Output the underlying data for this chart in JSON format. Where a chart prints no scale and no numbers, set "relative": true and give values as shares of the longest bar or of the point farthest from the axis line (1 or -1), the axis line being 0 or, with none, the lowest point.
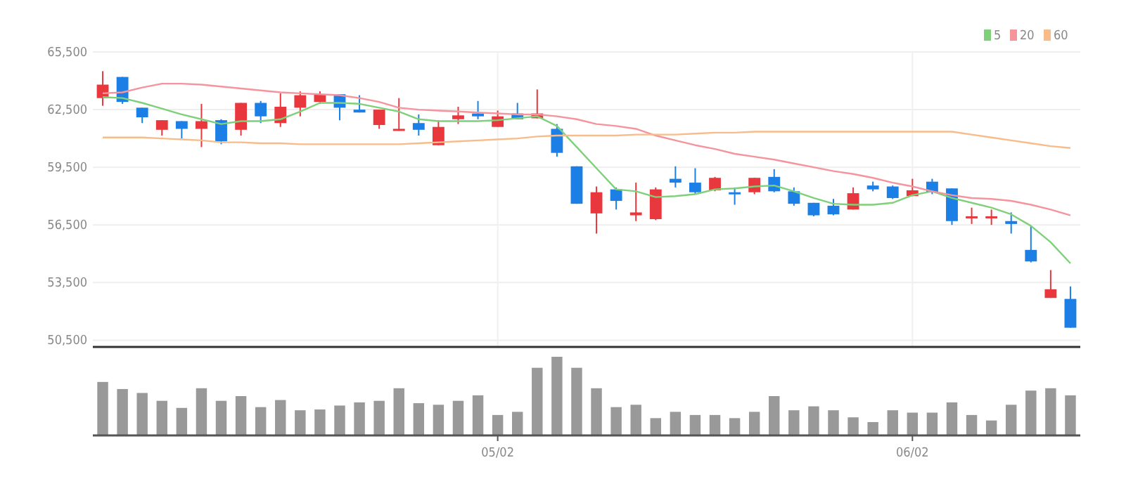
{
  "chart_data": [
    {
      "type": "candlestick",
      "categories": [
        null,
        null,
        null,
        null,
        null,
        null,
        null,
        null,
        null,
        null,
        null,
        null,
        null,
        null,
        null,
        null,
        null,
        null,
        null,
        null,
        null,
        null,
        null,
        null,
        null,
        null,
        null,
        null,
        null,
        null,
        null,
        null,
        null,
        null,
        null,
        null,
        null,
        null,
        null,
        null,
        null,
        null,
        null,
        null,
        null,
        null,
        null,
        null,
        null,
        null
      ],
      "ohlc": [
        [
          63100,
          64500,
          62700,
          63800
        ],
        [
          64200,
          64200,
          62800,
          62900
        ],
        [
          62600,
          62600,
          61800,
          62100
        ],
        [
          61450,
          61950,
          61150,
          61950
        ],
        [
          61900,
          61900,
          61000,
          61500
        ],
        [
          61500,
          62800,
          60550,
          61900
        ],
        [
          61950,
          62000,
          60700,
          60850
        ],
        [
          61450,
          62850,
          61150,
          62850
        ],
        [
          62850,
          62950,
          61800,
          62150
        ],
        [
          61800,
          63350,
          61600,
          62650
        ],
        [
          62600,
          63450,
          62150,
          63250
        ],
        [
          62900,
          63450,
          62800,
          63300
        ],
        [
          63300,
          63300,
          61950,
          62600
        ],
        [
          62500,
          63250,
          62350,
          62350
        ],
        [
          61700,
          62500,
          61500,
          62500
        ],
        [
          61400,
          63100,
          61400,
          61500
        ],
        [
          61800,
          62250,
          61150,
          61450
        ],
        [
          60650,
          61950,
          60650,
          61600
        ],
        [
          62000,
          62650,
          61750,
          62200
        ],
        [
          62300,
          62950,
          62000,
          62150
        ],
        [
          61600,
          62450,
          61600,
          62150
        ],
        [
          62300,
          62850,
          62000,
          62000
        ],
        [
          62050,
          63550,
          62050,
          62300
        ],
        [
          61500,
          61750,
          60050,
          60250
        ],
        [
          59550,
          59550,
          57600,
          57600
        ],
        [
          57100,
          58500,
          56050,
          58200
        ],
        [
          58350,
          58450,
          57300,
          57750
        ],
        [
          57000,
          58700,
          56700,
          57150
        ],
        [
          56800,
          58450,
          56750,
          58350
        ],
        [
          58900,
          59550,
          58450,
          58700
        ],
        [
          58700,
          59450,
          58100,
          58200
        ],
        [
          58300,
          59000,
          58250,
          58950
        ],
        [
          58200,
          58450,
          57550,
          58100
        ],
        [
          58200,
          58950,
          58100,
          58950
        ],
        [
          59000,
          59400,
          58200,
          58250
        ],
        [
          58250,
          58450,
          57500,
          57600
        ],
        [
          57650,
          57650,
          56950,
          57000
        ],
        [
          57500,
          57850,
          57000,
          57050
        ],
        [
          57300,
          58450,
          57300,
          58150
        ],
        [
          58550,
          58750,
          58250,
          58350
        ],
        [
          58500,
          58550,
          57850,
          57900
        ],
        [
          58000,
          58900,
          58000,
          58300
        ],
        [
          58750,
          58900,
          58100,
          58200
        ],
        [
          58400,
          58400,
          56500,
          56700
        ],
        [
          56850,
          57400,
          56550,
          56950
        ],
        [
          56850,
          57300,
          56500,
          56950
        ],
        [
          56700,
          57150,
          56050,
          56550
        ],
        [
          55200,
          56450,
          54550,
          54600
        ],
        [
          52700,
          54150,
          52700,
          53150
        ],
        [
          52650,
          53300,
          51150,
          51150
        ]
      ],
      "colors": [
        "#e8383d",
        "#1b7fe6",
        "#1b7fe6",
        "#e8383d",
        "#1b7fe6",
        "#e8383d",
        "#1b7fe6",
        "#e8383d",
        "#1b7fe6",
        "#e8383d",
        "#e8383d",
        "#e8383d",
        "#1b7fe6",
        "#1b7fe6",
        "#e8383d",
        "#e8383d",
        "#1b7fe6",
        "#e8383d",
        "#e8383d",
        "#1b7fe6",
        "#e8383d",
        "#1b7fe6",
        "#e8383d",
        "#1b7fe6",
        "#1b7fe6",
        "#e8383d",
        "#1b7fe6",
        "#e8383d",
        "#e8383d",
        "#1b7fe6",
        "#1b7fe6",
        "#e8383d",
        "#1b7fe6",
        "#e8383d",
        "#1b7fe6",
        "#1b7fe6",
        "#1b7fe6",
        "#1b7fe6",
        "#e8383d",
        "#1b7fe6",
        "#1b7fe6",
        "#e8383d",
        "#1b7fe6",
        "#1b7fe6",
        "#e8383d",
        "#e8383d",
        "#1b7fe6",
        "#1b7fe6",
        "#e8383d",
        "#1b7fe6"
      ],
      "series": [
        {
          "type": "line",
          "name": "5",
          "color": "#7fd07a",
          "values": [
            63150,
            63100,
            62850,
            62550,
            62250,
            62000,
            61750,
            61900,
            61900,
            62000,
            62400,
            62850,
            62850,
            62800,
            62600,
            62400,
            62000,
            61900,
            61900,
            61900,
            61950,
            62050,
            62150,
            61650,
            60550,
            59450,
            58350,
            58250,
            57950,
            58000,
            58100,
            58350,
            58400,
            58500,
            58550,
            58250,
            57900,
            57600,
            57550,
            57550,
            57650,
            58050,
            58250,
            57900,
            57650,
            57400,
            57050,
            56450,
            55600,
            54500
          ]
        },
        {
          "type": "line",
          "name": "20",
          "color": "#f5949c",
          "values": [
            63350,
            63400,
            63650,
            63850,
            63850,
            63800,
            63700,
            63600,
            63500,
            63400,
            63350,
            63300,
            63250,
            63100,
            62900,
            62600,
            62500,
            62450,
            62400,
            62350,
            62300,
            62250,
            62250,
            62150,
            62000,
            61750,
            61650,
            61500,
            61150,
            60900,
            60650,
            60450,
            60200,
            60050,
            59900,
            59700,
            59500,
            59300,
            59150,
            58950,
            58700,
            58500,
            58250,
            58050,
            57900,
            57850,
            57750,
            57550,
            57300,
            57000
          ]
        },
        {
          "type": "line",
          "name": "60",
          "color": "#f7bc8a",
          "values": [
            61050,
            61050,
            61050,
            61000,
            60950,
            60900,
            60800,
            60800,
            60750,
            60750,
            60700,
            60700,
            60700,
            60700,
            60700,
            60700,
            60750,
            60800,
            60850,
            60900,
            60950,
            61000,
            61100,
            61150,
            61150,
            61150,
            61150,
            61200,
            61200,
            61200,
            61250,
            61300,
            61300,
            61350,
            61350,
            61350,
            61350,
            61350,
            61350,
            61350,
            61350,
            61350,
            61350,
            61350,
            61200,
            61050,
            60900,
            60750,
            60600,
            60500
          ]
        }
      ],
      "ylim": [
        50150,
        65500
      ],
      "yticks": [
        {
          "value": 50500,
          "label": "50,500"
        },
        {
          "value": 53500,
          "label": "53,500"
        },
        {
          "value": 56500,
          "label": "56,500"
        },
        {
          "value": 59500,
          "label": "59,500"
        },
        {
          "value": 62500,
          "label": "62,500"
        },
        {
          "value": 65500,
          "label": "65,500"
        }
      ],
      "tick_labels": "y",
      "grid": "y",
      "legend": "top right"
    },
    {
      "type": "bar",
      "relative": true,
      "color": "#999999",
      "categories": [
        null,
        null,
        null,
        null,
        null,
        null,
        null,
        null,
        null,
        null,
        null,
        null,
        null,
        null,
        null,
        null,
        null,
        null,
        null,
        null,
        "05/02",
        null,
        null,
        null,
        null,
        null,
        null,
        null,
        null,
        null,
        null,
        null,
        null,
        null,
        null,
        null,
        null,
        null,
        null,
        null,
        null,
        "06/02",
        null,
        null,
        null,
        null,
        null,
        null,
        null,
        null
      ],
      "values": [
        0.68,
        0.59,
        0.54,
        0.44,
        0.35,
        0.6,
        0.44,
        0.5,
        0.36,
        0.45,
        0.32,
        0.33,
        0.38,
        0.42,
        0.44,
        0.6,
        0.41,
        0.39,
        0.44,
        0.51,
        0.26,
        0.3,
        0.86,
        1,
        0.86,
        0.6,
        0.36,
        0.39,
        0.22,
        0.3,
        0.26,
        0.26,
        0.22,
        0.3,
        0.5,
        0.32,
        0.37,
        0.32,
        0.23,
        0.17,
        0.32,
        0.29,
        0.29,
        0.42,
        0.26,
        0.19,
        0.39,
        0.57,
        0.6,
        0.51
      ]
    }
  ]
}
